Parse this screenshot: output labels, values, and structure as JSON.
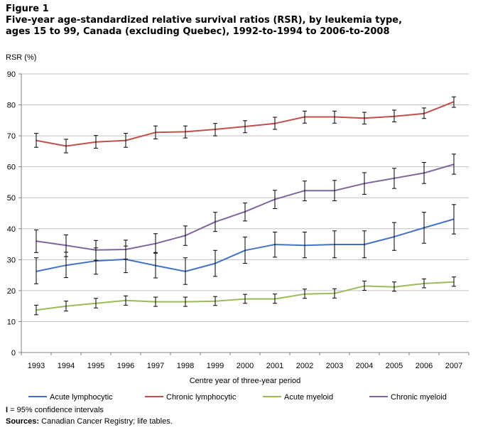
{
  "figure_label": "Figure 1",
  "title": "Five-year age-standardized relative survival ratios (RSR),  by leukemia type, ages 15 to 99, Canada (excluding Quebec), 1992-to-1994 to 2006-to-2008",
  "footnote": {
    "glyph": "I",
    "text": " = 95% confidence intervals"
  },
  "sources": {
    "label": "Sources:",
    "text": " Canadian Cancer Registry; life tables."
  },
  "colors": {
    "acute_lymphocytic": "#4472c4",
    "chronic_lymphocytic": "#c0504d",
    "acute_myeloid": "#9bbb59",
    "chronic_myeloid": "#8064a2",
    "grid": "#c0c0c0",
    "axis": "#808080",
    "error_bar": "#000000"
  },
  "chart_data": {
    "type": "line",
    "title": "Five-year age-standardized relative survival ratios (RSR),  by leukemia type, ages 15 to 99, Canada (excluding Quebec), 1992-to-1994 to 2006-to-2008",
    "xlabel": "Centre year of three-year period",
    "ylabel": "RSR (%)",
    "ylim": [
      0,
      90
    ],
    "yticks": [
      0,
      10,
      20,
      30,
      40,
      50,
      60,
      70,
      80,
      90
    ],
    "grid": true,
    "legend_position": "bottom",
    "x": [
      "1993",
      "1994",
      "1995",
      "1996",
      "1997",
      "1998",
      "1999",
      "2000",
      "2001",
      "2002",
      "2003",
      "2004",
      "2005",
      "2006",
      "2007"
    ],
    "series": [
      {
        "name": "Acute lymphocytic",
        "color_key": "acute_lymphocytic",
        "values": [
          26.2,
          28.2,
          29.6,
          30.1,
          28.1,
          26.2,
          28.8,
          33.0,
          34.9,
          34.6,
          34.9,
          34.9,
          37.4,
          40.3,
          43.1
        ],
        "ci_low": [
          22.2,
          24.2,
          25.3,
          25.8,
          24.1,
          22.0,
          24.6,
          28.8,
          30.8,
          30.6,
          30.6,
          30.6,
          33.0,
          35.3,
          38.3
        ],
        "ci_high": [
          30.6,
          32.4,
          33.8,
          34.4,
          32.3,
          30.6,
          33.0,
          37.3,
          38.9,
          38.9,
          39.3,
          39.3,
          42.0,
          45.3,
          47.8
        ]
      },
      {
        "name": "Chronic lymphocytic",
        "color_key": "chronic_lymphocytic",
        "values": [
          68.5,
          66.7,
          68.0,
          68.5,
          71.1,
          71.3,
          72.1,
          73.0,
          74.0,
          76.1,
          76.1,
          75.7,
          76.3,
          77.2,
          81.0
        ],
        "ci_low": [
          66.3,
          64.5,
          66.0,
          66.3,
          69.0,
          69.3,
          70.0,
          71.0,
          72.1,
          74.1,
          74.1,
          73.8,
          74.5,
          75.6,
          79.2
        ],
        "ci_high": [
          70.8,
          68.9,
          70.1,
          70.8,
          73.2,
          73.2,
          74.0,
          74.9,
          76.0,
          78.0,
          78.0,
          77.6,
          78.3,
          79.0,
          82.6
        ]
      },
      {
        "name": "Acute myeloid",
        "color_key": "acute_myeloid",
        "values": [
          13.7,
          15.0,
          15.9,
          16.8,
          16.4,
          16.4,
          16.6,
          17.3,
          17.3,
          18.9,
          19.1,
          21.5,
          21.2,
          22.3,
          22.8
        ],
        "ci_low": [
          12.2,
          13.4,
          14.4,
          15.3,
          14.9,
          14.9,
          15.2,
          15.9,
          15.9,
          17.5,
          17.6,
          20.1,
          19.8,
          20.9,
          21.4
        ],
        "ci_high": [
          15.3,
          16.6,
          17.5,
          18.3,
          17.9,
          17.9,
          18.1,
          18.8,
          18.9,
          20.5,
          20.6,
          23.1,
          22.8,
          23.8,
          24.4
        ]
      },
      {
        "name": "Chronic myeloid",
        "color_key": "chronic_myeloid",
        "values": [
          36.0,
          34.6,
          33.1,
          33.3,
          35.2,
          37.8,
          42.2,
          45.5,
          49.5,
          52.3,
          52.3,
          54.6,
          56.3,
          58.0,
          60.8
        ],
        "ci_low": [
          32.3,
          31.0,
          29.8,
          30.2,
          32.1,
          34.6,
          39.1,
          42.5,
          46.5,
          49.0,
          49.0,
          51.1,
          53.0,
          54.6,
          57.6
        ],
        "ci_high": [
          39.6,
          38.0,
          36.2,
          36.3,
          38.4,
          40.9,
          45.3,
          48.3,
          52.4,
          55.4,
          55.6,
          58.1,
          59.5,
          61.4,
          64.1
        ]
      }
    ]
  }
}
